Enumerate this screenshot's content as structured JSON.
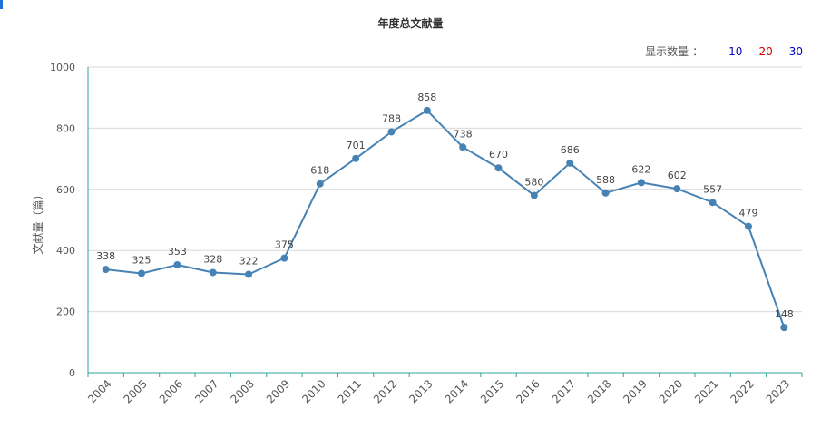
{
  "chart_data": {
    "type": "line",
    "title": "年度总文献量",
    "ylabel": "文献量（篇）",
    "xlabel": "",
    "ylim": [
      0,
      1000
    ],
    "yticks": [
      0,
      200,
      400,
      600,
      800,
      1000
    ],
    "grid": true,
    "line_color": "#4682b4",
    "axis_color": "#2ea39c",
    "categories": [
      "2004",
      "2005",
      "2006",
      "2007",
      "2008",
      "2009",
      "2010",
      "2011",
      "2012",
      "2013",
      "2014",
      "2015",
      "2016",
      "2017",
      "2018",
      "2019",
      "2020",
      "2021",
      "2022",
      "2023"
    ],
    "series": [
      {
        "values": [
          338,
          325,
          353,
          328,
          322,
          375,
          618,
          701,
          788,
          858,
          738,
          670,
          580,
          686,
          588,
          622,
          602,
          557,
          479,
          148
        ]
      }
    ]
  },
  "display_count": {
    "label": "显示数量",
    "colon": "：",
    "options": [
      {
        "text": "10",
        "color": "#0000cc"
      },
      {
        "text": "20",
        "color": "#cc0000"
      },
      {
        "text": "30",
        "color": "#0000cc"
      }
    ]
  }
}
